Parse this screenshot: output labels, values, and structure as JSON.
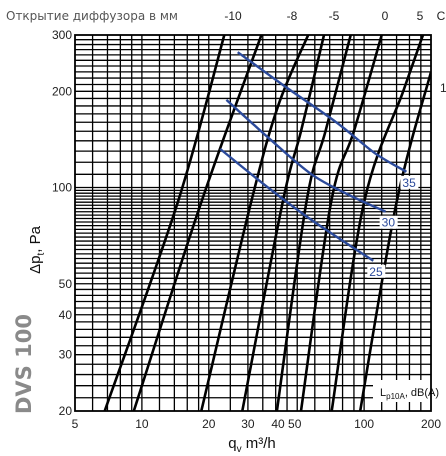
{
  "chart_data": {
    "type": "line",
    "model": "DVS 100",
    "top_label": "Открытие диффузора в мм",
    "top_ticks": [
      "-10",
      "-8",
      "-5",
      "0",
      "5",
      "C"
    ],
    "right_edge_label": "1",
    "ylabel": "Δp",
    "ylabel_sub": "t",
    "ylabel_unit": ", Pa",
    "xlabel": "q",
    "xlabel_sub": "v",
    "xlabel_unit": " m³/h",
    "x_scale": "log",
    "y_scale": "log",
    "xlim": [
      5,
      200
    ],
    "ylim": [
      20,
      300
    ],
    "x_ticks": [
      5,
      10,
      20,
      30,
      40,
      50,
      100,
      200
    ],
    "x_tick_labels": [
      "5",
      "10",
      "20",
      "30",
      "40 50",
      "100",
      "200"
    ],
    "y_ticks": [
      20,
      30,
      40,
      50,
      100,
      200,
      300
    ],
    "legend_box": {
      "main": "L",
      "sub": "p10A",
      "suffix": ", dB(A)"
    },
    "grid": true,
    "diffuser_curves": [
      {
        "points": [
          [
            6.8,
            20
          ],
          [
            14.5,
            90
          ],
          [
            23.5,
            300
          ]
        ]
      },
      {
        "points": [
          [
            9.2,
            20
          ],
          [
            18.5,
            90
          ],
          [
            34.5,
            300
          ]
        ]
      },
      {
        "points": [
          [
            18.5,
            20
          ],
          [
            31,
            90
          ],
          [
            41,
            180
          ],
          [
            56,
            300
          ]
        ]
      },
      {
        "points": [
          [
            28.3,
            20
          ],
          [
            43,
            90
          ],
          [
            52,
            150
          ],
          [
            66,
            300
          ]
        ]
      },
      {
        "points": [
          [
            40.5,
            20
          ],
          [
            55,
            90
          ],
          [
            67,
            150
          ],
          [
            87,
            300
          ]
        ]
      },
      {
        "points": [
          [
            52,
            20
          ],
          [
            71,
            90
          ],
          [
            90,
            150
          ],
          [
            120,
            300
          ]
        ]
      },
      {
        "points": [
          [
            71.5,
            20
          ],
          [
            100,
            90
          ],
          [
            150,
            200
          ],
          [
            184,
            300
          ]
        ]
      },
      {
        "points": [
          [
            96,
            20
          ],
          [
            140,
            90
          ],
          [
            200,
            230
          ]
        ]
      }
    ],
    "noise_curves": [
      {
        "label": "35",
        "points": [
          [
            27,
            265
          ],
          [
            45,
            205
          ],
          [
            75,
            160
          ],
          [
            112,
            128
          ],
          [
            155,
            112
          ]
        ]
      },
      {
        "label": "30",
        "points": [
          [
            24,
            188
          ],
          [
            38,
            141
          ],
          [
            58,
            110
          ],
          [
            85,
            95
          ],
          [
            125,
            84
          ]
        ]
      },
      {
        "label": "25",
        "points": [
          [
            22.5,
            132
          ],
          [
            35,
            103
          ],
          [
            54,
            82
          ],
          [
            78,
            69
          ],
          [
            110,
            59
          ]
        ]
      }
    ]
  }
}
